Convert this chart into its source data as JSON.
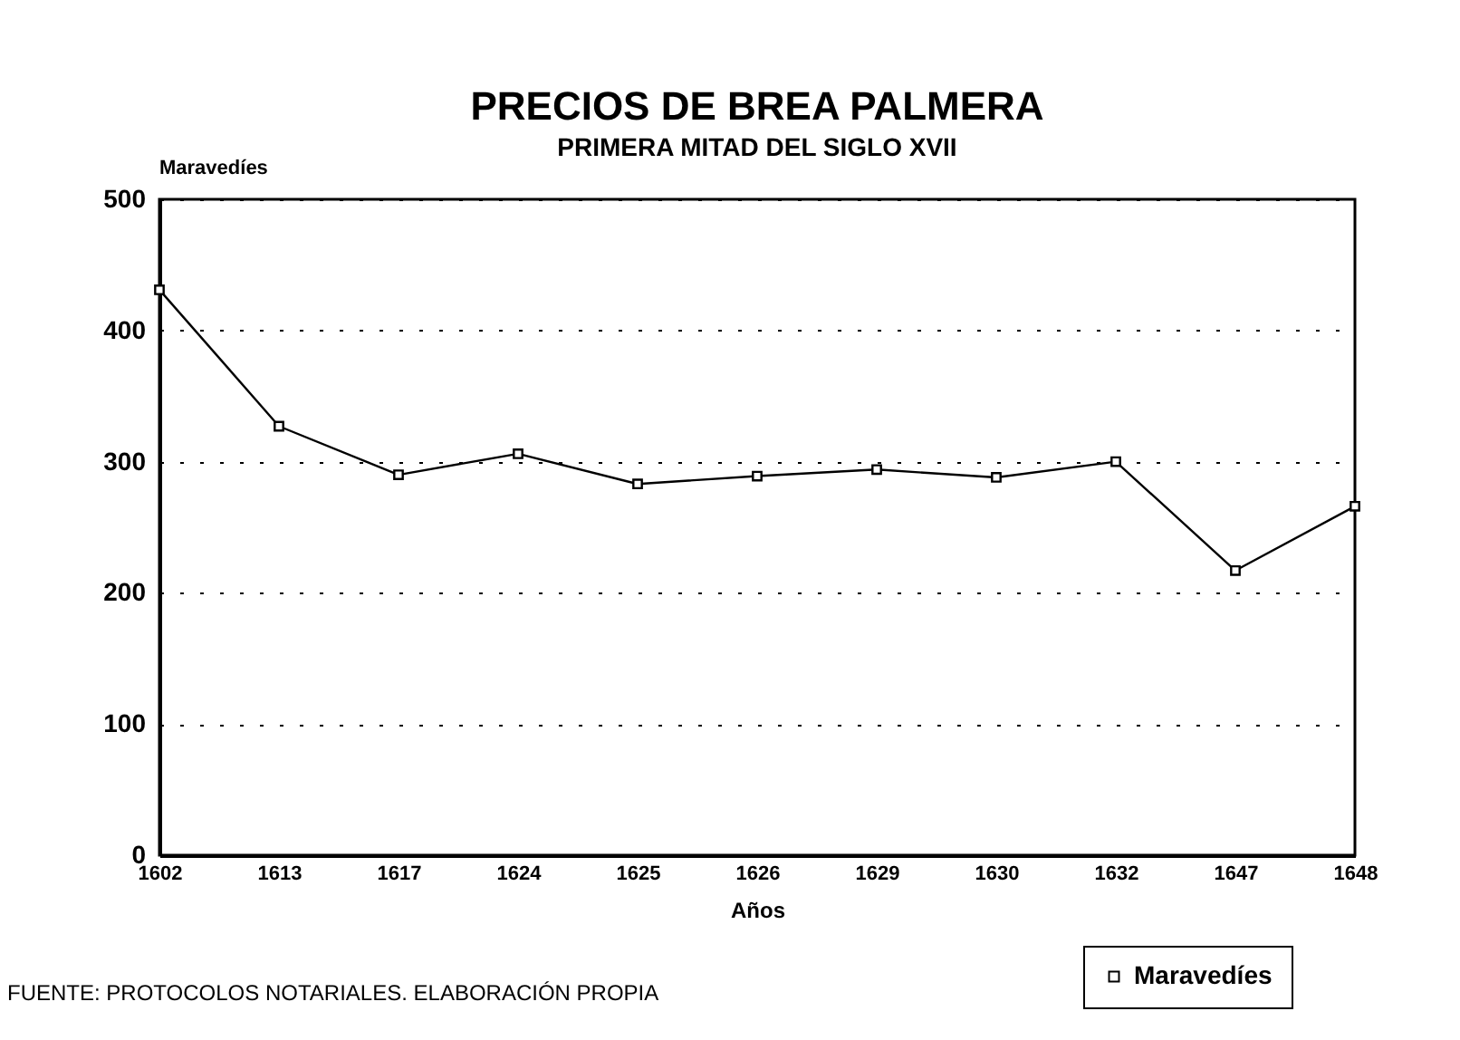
{
  "chart_data": {
    "type": "line",
    "title": "PRECIOS DE BREA PALMERA",
    "subtitle": "PRIMERA MITAD DEL SIGLO XVII",
    "xlabel": "Años",
    "ylabel": "Maravedíes",
    "categories": [
      "1602",
      "1613",
      "1617",
      "1624",
      "1625",
      "1626",
      "1629",
      "1630",
      "1632",
      "1647",
      "1648"
    ],
    "series": [
      {
        "name": "Maravedíes",
        "color": "#000000",
        "values": [
          431,
          327,
          290,
          306,
          283,
          289,
          294,
          288,
          300,
          217,
          266
        ]
      }
    ],
    "ylim": [
      0,
      500
    ],
    "yticks": [
      0,
      100,
      200,
      300,
      400,
      500
    ],
    "grid": "y",
    "marker": "square",
    "line_style": "solid",
    "legend": "bottom right",
    "annotations": [
      "FUENTE: PROTOCOLOS NOTARIALES. ELABORACIÓN PROPIA"
    ]
  }
}
